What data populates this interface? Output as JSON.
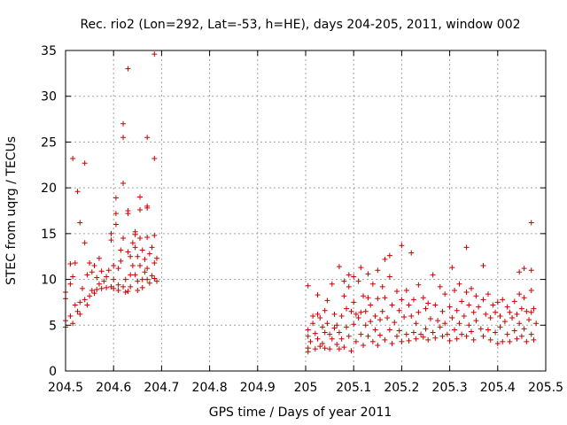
{
  "chart_data": {
    "type": "scatter",
    "title": "Rec. rio2 (Lon=292, Lat=-53, h=HE), days 204-205, 2011, window 002",
    "xlabel": "GPS time / Days of year 2011",
    "ylabel": "STEC from uqrg / TECUs",
    "xlim": [
      204.5,
      205.5
    ],
    "ylim": [
      0,
      35
    ],
    "xticks": [
      204.5,
      204.6,
      204.7,
      204.8,
      204.9,
      205,
      205.1,
      205.2,
      205.3,
      205.4,
      205.5
    ],
    "xtick_labels": [
      "204.5",
      "204.6",
      "204.7",
      "204.8",
      "204.9",
      "205",
      "205.1",
      "205.2",
      "205.3",
      "205.4",
      "205.5"
    ],
    "yticks": [
      0,
      5,
      10,
      15,
      20,
      25,
      30,
      35
    ],
    "ytick_labels": [
      "0",
      "5",
      "10",
      "15",
      "20",
      "25",
      "30",
      "35"
    ],
    "grid": true,
    "marker": "+",
    "color": "#cc0000",
    "series": [
      {
        "name": "STEC",
        "points": [
          [
            204.5,
            4.8
          ],
          [
            204.5,
            5.5
          ],
          [
            204.5,
            7.9
          ],
          [
            204.5,
            8.6
          ],
          [
            204.51,
            6.0
          ],
          [
            204.51,
            11.7
          ],
          [
            204.51,
            9.5
          ],
          [
            204.515,
            5.2
          ],
          [
            204.515,
            10.3
          ],
          [
            204.515,
            23.2
          ],
          [
            204.52,
            11.8
          ],
          [
            204.52,
            7.2
          ],
          [
            204.525,
            6.5
          ],
          [
            204.525,
            19.6
          ],
          [
            204.53,
            16.2
          ],
          [
            204.53,
            6.2
          ],
          [
            204.53,
            7.5
          ],
          [
            204.535,
            9.0
          ],
          [
            204.54,
            22.7
          ],
          [
            204.54,
            14.0
          ],
          [
            204.54,
            7.8
          ],
          [
            204.545,
            7.2
          ],
          [
            204.545,
            10.5
          ],
          [
            204.55,
            8.2
          ],
          [
            204.55,
            11.8
          ],
          [
            204.555,
            8.8
          ],
          [
            204.555,
            10.8
          ],
          [
            204.56,
            8.5
          ],
          [
            204.56,
            11.5
          ],
          [
            204.565,
            8.9
          ],
          [
            204.565,
            10.2
          ],
          [
            204.57,
            9.5
          ],
          [
            204.57,
            12.3
          ],
          [
            204.575,
            9.0
          ],
          [
            204.575,
            10.9
          ],
          [
            204.58,
            9.8
          ],
          [
            204.585,
            10.3
          ],
          [
            204.585,
            9.1
          ],
          [
            204.59,
            11.0
          ],
          [
            204.595,
            9.2
          ],
          [
            204.595,
            14.3
          ],
          [
            204.595,
            15.0
          ],
          [
            204.6,
            10.0
          ],
          [
            204.6,
            11.5
          ],
          [
            204.6,
            9.0
          ],
          [
            204.605,
            16.0
          ],
          [
            204.605,
            17.2
          ],
          [
            204.605,
            18.9
          ],
          [
            204.61,
            9.4
          ],
          [
            204.61,
            11.2
          ],
          [
            204.61,
            8.8
          ],
          [
            204.615,
            13.2
          ],
          [
            204.615,
            12.0
          ],
          [
            204.62,
            14.5
          ],
          [
            204.62,
            9.2
          ],
          [
            204.62,
            20.5
          ],
          [
            204.62,
            25.5
          ],
          [
            204.62,
            27.0
          ],
          [
            204.625,
            10.0
          ],
          [
            204.625,
            8.6
          ],
          [
            204.63,
            17.5
          ],
          [
            204.63,
            17.2
          ],
          [
            204.63,
            13.0
          ],
          [
            204.63,
            8.7
          ],
          [
            204.63,
            33.0
          ],
          [
            204.635,
            12.5
          ],
          [
            204.635,
            10.5
          ],
          [
            204.635,
            9.2
          ],
          [
            204.64,
            14.0
          ],
          [
            204.64,
            11.5
          ],
          [
            204.645,
            15.2
          ],
          [
            204.645,
            14.9
          ],
          [
            204.645,
            13.5
          ],
          [
            204.645,
            10.5
          ],
          [
            204.65,
            12.5
          ],
          [
            204.65,
            9.8
          ],
          [
            204.65,
            8.8
          ],
          [
            204.655,
            19.0
          ],
          [
            204.655,
            17.6
          ],
          [
            204.655,
            14.5
          ],
          [
            204.655,
            11.5
          ],
          [
            204.66,
            13.2
          ],
          [
            204.66,
            10.0
          ],
          [
            204.66,
            9.1
          ],
          [
            204.665,
            12.2
          ],
          [
            204.665,
            10.8
          ],
          [
            204.67,
            25.5
          ],
          [
            204.67,
            17.8
          ],
          [
            204.67,
            18.0
          ],
          [
            204.67,
            14.6
          ],
          [
            204.67,
            11.2
          ],
          [
            204.67,
            10.0
          ],
          [
            204.675,
            12.8
          ],
          [
            204.675,
            9.6
          ],
          [
            204.68,
            13.5
          ],
          [
            204.68,
            10.4
          ],
          [
            204.685,
            34.6
          ],
          [
            204.685,
            23.2
          ],
          [
            204.685,
            14.8
          ],
          [
            204.685,
            11.8
          ],
          [
            204.685,
            10.1
          ],
          [
            204.69,
            12.3
          ],
          [
            204.69,
            9.8
          ],
          [
            205.005,
            9.3
          ],
          [
            205.005,
            4.5
          ],
          [
            205.005,
            3.8
          ],
          [
            205.005,
            2.5
          ],
          [
            205.005,
            2.1
          ],
          [
            205.01,
            3.2
          ],
          [
            205.015,
            6.0
          ],
          [
            205.015,
            5.2
          ],
          [
            205.02,
            4.1
          ],
          [
            205.02,
            2.4
          ],
          [
            205.025,
            8.3
          ],
          [
            205.025,
            6.2
          ],
          [
            205.025,
            3.5
          ],
          [
            205.03,
            5.8
          ],
          [
            205.03,
            2.7
          ],
          [
            205.035,
            4.8
          ],
          [
            205.035,
            3.0
          ],
          [
            205.04,
            6.6
          ],
          [
            205.04,
            4.2
          ],
          [
            205.04,
            2.5
          ],
          [
            205.045,
            7.7
          ],
          [
            205.045,
            5.2
          ],
          [
            205.05,
            4.0
          ],
          [
            205.05,
            2.4
          ],
          [
            205.055,
            9.5
          ],
          [
            205.055,
            3.5
          ],
          [
            205.06,
            6.2
          ],
          [
            205.06,
            4.7
          ],
          [
            205.065,
            2.9
          ],
          [
            205.065,
            5.0
          ],
          [
            205.07,
            11.4
          ],
          [
            205.07,
            4.2
          ],
          [
            205.07,
            2.4
          ],
          [
            205.075,
            6.0
          ],
          [
            205.075,
            3.5
          ],
          [
            205.08,
            9.8
          ],
          [
            205.08,
            8.2
          ],
          [
            205.08,
            2.6
          ],
          [
            205.085,
            6.8
          ],
          [
            205.085,
            4.8
          ],
          [
            205.09,
            10.5
          ],
          [
            205.09,
            9.2
          ],
          [
            205.09,
            3.8
          ],
          [
            205.095,
            6.5
          ],
          [
            205.095,
            2.2
          ],
          [
            205.1,
            10.3
          ],
          [
            205.1,
            7.5
          ],
          [
            205.1,
            5.1
          ],
          [
            205.105,
            6.2
          ],
          [
            205.105,
            3.2
          ],
          [
            205.11,
            9.8
          ],
          [
            205.11,
            5.8
          ],
          [
            205.115,
            11.3
          ],
          [
            205.115,
            6.4
          ],
          [
            205.115,
            4.0
          ],
          [
            205.12,
            8.2
          ],
          [
            205.12,
            2.8
          ],
          [
            205.125,
            6.5
          ],
          [
            205.125,
            5.0
          ],
          [
            205.13,
            10.6
          ],
          [
            205.13,
            8.0
          ],
          [
            205.13,
            3.8
          ],
          [
            205.135,
            7.2
          ],
          [
            205.135,
            5.4
          ],
          [
            205.14,
            9.5
          ],
          [
            205.14,
            3.2
          ],
          [
            205.145,
            6.0
          ],
          [
            205.145,
            4.5
          ],
          [
            205.15,
            11.0
          ],
          [
            205.15,
            7.9
          ],
          [
            205.15,
            2.8
          ],
          [
            205.155,
            5.6
          ],
          [
            205.155,
            3.9
          ],
          [
            205.16,
            9.2
          ],
          [
            205.16,
            6.5
          ],
          [
            205.165,
            12.2
          ],
          [
            205.165,
            8.0
          ],
          [
            205.165,
            3.4
          ],
          [
            205.17,
            5.8
          ],
          [
            205.175,
            12.6
          ],
          [
            205.175,
            10.3
          ],
          [
            205.175,
            4.5
          ],
          [
            205.18,
            7.2
          ],
          [
            205.18,
            3.0
          ],
          [
            205.185,
            5.3
          ],
          [
            205.19,
            8.7
          ],
          [
            205.19,
            3.8
          ],
          [
            205.195,
            6.6
          ],
          [
            205.195,
            4.4
          ],
          [
            205.2,
            13.7
          ],
          [
            205.2,
            7.8
          ],
          [
            205.2,
            3.2
          ],
          [
            205.205,
            5.9
          ],
          [
            205.21,
            8.8
          ],
          [
            205.21,
            4.0
          ],
          [
            205.215,
            7.2
          ],
          [
            205.215,
            3.3
          ],
          [
            205.22,
            12.9
          ],
          [
            205.22,
            6.0
          ],
          [
            205.225,
            7.8
          ],
          [
            205.225,
            4.2
          ],
          [
            205.23,
            5.2
          ],
          [
            205.23,
            3.5
          ],
          [
            205.235,
            9.4
          ],
          [
            205.235,
            6.4
          ],
          [
            205.24,
            4.0
          ],
          [
            205.245,
            8.0
          ],
          [
            205.245,
            3.7
          ],
          [
            205.25,
            6.8
          ],
          [
            205.25,
            4.6
          ],
          [
            205.255,
            7.4
          ],
          [
            205.255,
            3.4
          ],
          [
            205.26,
            5.7
          ],
          [
            205.265,
            10.5
          ],
          [
            205.265,
            4.2
          ],
          [
            205.27,
            7.2
          ],
          [
            205.27,
            3.6
          ],
          [
            205.275,
            5.5
          ],
          [
            205.28,
            9.2
          ],
          [
            205.28,
            4.8
          ],
          [
            205.285,
            6.5
          ],
          [
            205.285,
            3.8
          ],
          [
            205.29,
            8.4
          ],
          [
            205.29,
            5.2
          ],
          [
            205.295,
            4.0
          ],
          [
            205.3,
            7.0
          ],
          [
            205.3,
            3.3
          ],
          [
            205.305,
            11.3
          ],
          [
            205.305,
            5.8
          ],
          [
            205.31,
            8.8
          ],
          [
            205.31,
            4.5
          ],
          [
            205.315,
            6.6
          ],
          [
            205.315,
            3.5
          ],
          [
            205.32,
            9.5
          ],
          [
            205.32,
            5.2
          ],
          [
            205.325,
            7.6
          ],
          [
            205.325,
            4.0
          ],
          [
            205.33,
            6.0
          ],
          [
            205.335,
            13.5
          ],
          [
            205.335,
            8.6
          ],
          [
            205.335,
            3.8
          ],
          [
            205.34,
            7.2
          ],
          [
            205.34,
            5.0
          ],
          [
            205.345,
            9.0
          ],
          [
            205.345,
            4.3
          ],
          [
            205.35,
            6.4
          ],
          [
            205.35,
            3.4
          ],
          [
            205.355,
            8.2
          ],
          [
            205.355,
            5.5
          ],
          [
            205.36,
            7.0
          ],
          [
            205.365,
            4.6
          ],
          [
            205.37,
            11.5
          ],
          [
            205.37,
            7.8
          ],
          [
            205.37,
            3.8
          ],
          [
            205.375,
            6.2
          ],
          [
            205.38,
            8.4
          ],
          [
            205.38,
            4.5
          ],
          [
            205.385,
            5.8
          ],
          [
            205.385,
            3.4
          ],
          [
            205.39,
            7.2
          ],
          [
            205.395,
            6.4
          ],
          [
            205.395,
            4.2
          ],
          [
            205.4,
            7.5
          ],
          [
            205.4,
            3.0
          ],
          [
            205.405,
            6.0
          ],
          [
            205.405,
            4.8
          ],
          [
            205.41,
            7.8
          ],
          [
            205.41,
            3.2
          ],
          [
            205.415,
            5.4
          ],
          [
            205.42,
            7.0
          ],
          [
            205.42,
            4.0
          ],
          [
            205.425,
            6.4
          ],
          [
            205.425,
            3.2
          ],
          [
            205.43,
            5.8
          ],
          [
            205.435,
            7.6
          ],
          [
            205.435,
            4.4
          ],
          [
            205.44,
            6.2
          ],
          [
            205.44,
            3.5
          ],
          [
            205.445,
            10.8
          ],
          [
            205.445,
            8.4
          ],
          [
            205.445,
            5.2
          ],
          [
            205.45,
            6.8
          ],
          [
            205.45,
            3.8
          ],
          [
            205.455,
            11.2
          ],
          [
            205.455,
            8.0
          ],
          [
            205.455,
            4.6
          ],
          [
            205.46,
            6.5
          ],
          [
            205.46,
            3.2
          ],
          [
            205.465,
            5.6
          ],
          [
            205.47,
            16.2
          ],
          [
            205.47,
            11.0
          ],
          [
            205.47,
            8.8
          ],
          [
            205.47,
            6.4
          ],
          [
            205.47,
            4.0
          ],
          [
            205.475,
            6.8
          ],
          [
            205.475,
            3.4
          ],
          [
            205.48,
            5.2
          ]
        ]
      }
    ]
  }
}
